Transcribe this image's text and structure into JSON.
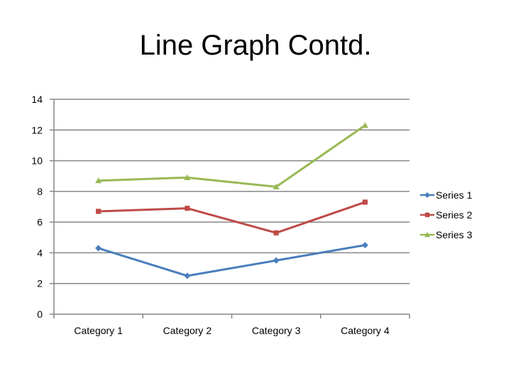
{
  "slide": {
    "title": "Line Graph Contd."
  },
  "chart_data": {
    "type": "line",
    "title": "",
    "xlabel": "",
    "ylabel": "",
    "categories": [
      "Category 1",
      "Category 2",
      "Category 3",
      "Category 4"
    ],
    "ylim": [
      0,
      14
    ],
    "yticks": [
      0,
      2,
      4,
      6,
      8,
      10,
      12,
      14
    ],
    "grid": true,
    "legend_position": "right",
    "series": [
      {
        "name": "Series 1",
        "values": [
          4.3,
          2.5,
          3.5,
          4.5
        ],
        "color": "#4a7ebb",
        "marker": "diamond"
      },
      {
        "name": "Series 2",
        "values": [
          6.7,
          6.9,
          5.3,
          7.3
        ],
        "color": "#be4b48",
        "marker": "square"
      },
      {
        "name": "Series 3",
        "values": [
          8.7,
          8.9,
          8.3,
          12.3
        ],
        "color": "#98b954",
        "marker": "triangle"
      }
    ]
  }
}
